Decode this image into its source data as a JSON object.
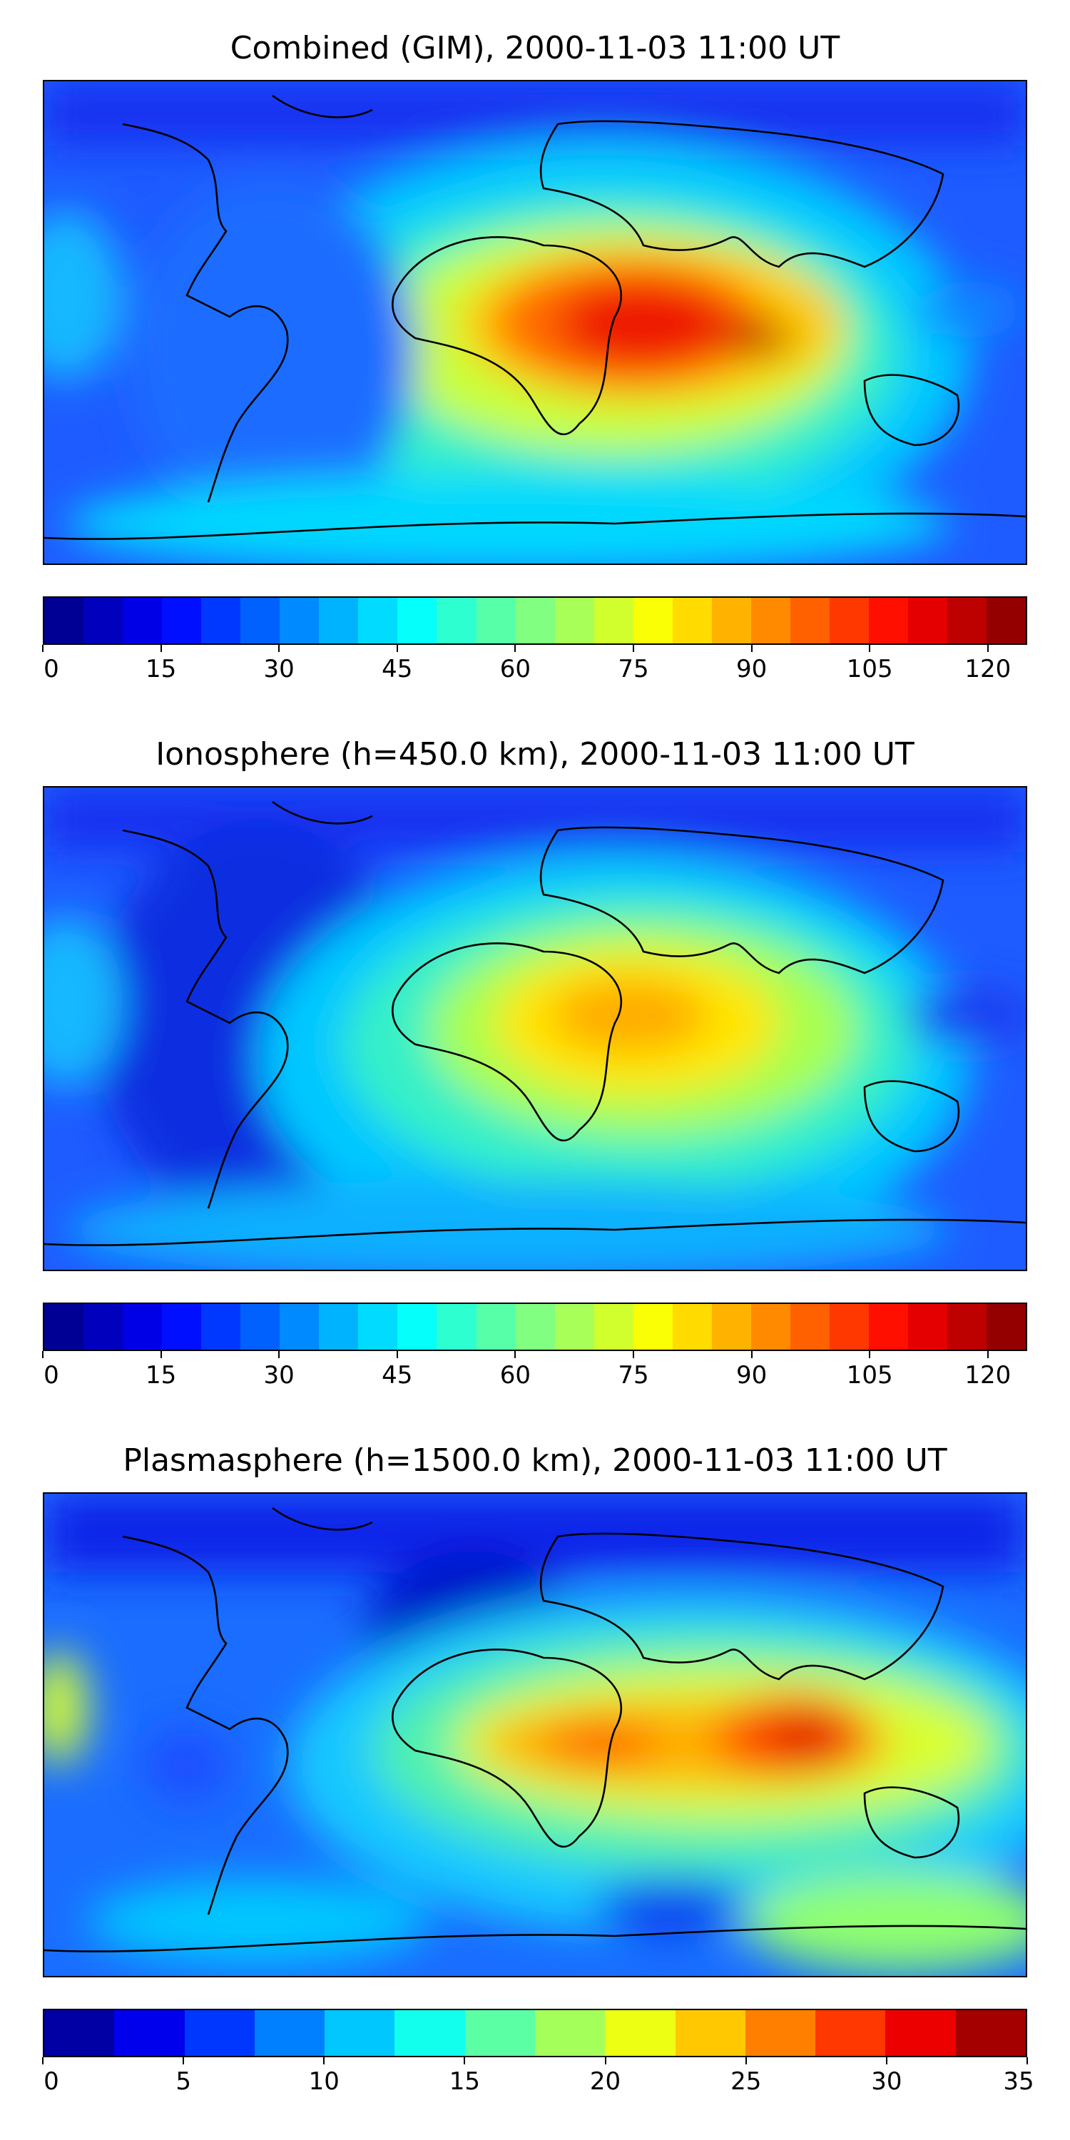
{
  "panels": [
    {
      "title": "Combined (GIM), 2000-11-03 11:00 UT",
      "colorbar": {
        "min": 0,
        "max": 125,
        "tick_labels": [
          "0",
          "15",
          "30",
          "45",
          "60",
          "75",
          "90",
          "105",
          "120"
        ],
        "tick_values": [
          0,
          15,
          30,
          45,
          60,
          75,
          90,
          105,
          120
        ],
        "segments": 25
      }
    },
    {
      "title": "Ionosphere  (h=450.0 km), 2000-11-03 11:00 UT",
      "colorbar": {
        "min": 0,
        "max": 125,
        "tick_labels": [
          "0",
          "15",
          "30",
          "45",
          "60",
          "75",
          "90",
          "105",
          "120"
        ],
        "tick_values": [
          0,
          15,
          30,
          45,
          60,
          75,
          90,
          105,
          120
        ],
        "segments": 25
      }
    },
    {
      "title": "Plasmasphere (h=1500.0 km), 2000-11-03 11:00 UT",
      "colorbar": {
        "min": 0,
        "max": 35,
        "tick_labels": [
          "0",
          "5",
          "10",
          "15",
          "20",
          "25",
          "30",
          "35"
        ],
        "tick_values": [
          0,
          5,
          10,
          15,
          20,
          25,
          30,
          35
        ],
        "segments": 14
      }
    }
  ],
  "colormap": "jet"
}
